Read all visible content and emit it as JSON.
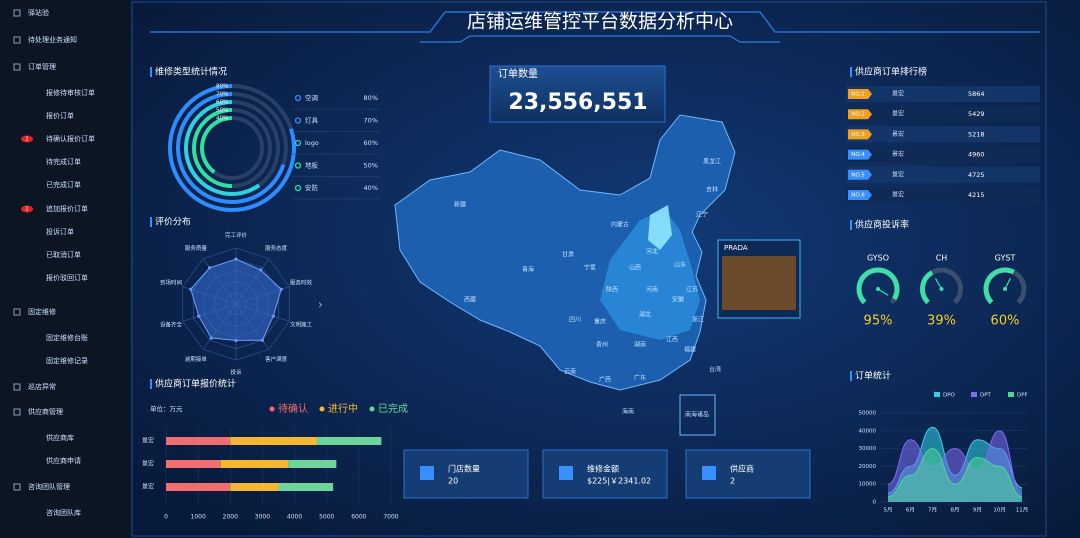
{
  "sidebar": {
    "items": [
      {
        "label": "驿站验"
      },
      {
        "label": "待处理业务通知"
      },
      {
        "label": "订单管理",
        "children": [
          {
            "label": "报修待审核订单"
          },
          {
            "label": "报价订单"
          },
          {
            "label": "待确认报价订单",
            "badge": 2
          },
          {
            "label": "待完成订单"
          },
          {
            "label": "已完成订单"
          },
          {
            "label": "追加报价订单",
            "badge": 2
          },
          {
            "label": "投诉订单"
          },
          {
            "label": "已取消订单"
          },
          {
            "label": "报价驳回订单"
          }
        ]
      },
      {
        "label": "固定维修",
        "children": [
          {
            "label": "固定维修台账"
          },
          {
            "label": "固定维修记录"
          }
        ]
      },
      {
        "label": "巡店异常"
      },
      {
        "label": "供应商管理",
        "children": [
          {
            "label": "供应商库"
          },
          {
            "label": "供应商申请"
          }
        ]
      },
      {
        "label": "咨询团队管理",
        "children": [
          {
            "label": "咨询团队库"
          }
        ]
      }
    ]
  },
  "header": {
    "title": "店铺运维管控平台数据分析中心"
  },
  "order_count": {
    "label": "订单数量",
    "value": "23,556,551"
  },
  "map": {
    "labels": [
      "新疆",
      "西藏",
      "青海",
      "甘肃",
      "内蒙古",
      "黑龙江",
      "吉林",
      "辽宁",
      "河北",
      "山西",
      "陕西",
      "宁夏",
      "四川",
      "重庆",
      "贵州",
      "云南",
      "广西",
      "广东",
      "湖南",
      "湖北",
      "河南",
      "山东",
      "江苏",
      "安徽",
      "浙江",
      "江西",
      "福建",
      "台湾",
      "海南",
      "南海诸岛"
    ],
    "popup": {
      "title": "PRADA"
    }
  },
  "stats": [
    {
      "label": "门店数量",
      "value": 20
    },
    {
      "label": "维修金额",
      "value": "$225|￥2341.02"
    },
    {
      "label": "供应商",
      "value": 2
    }
  ],
  "ranking": {
    "title": "供应商订单排行榜",
    "rows": [
      {
        "rank": "NO.1",
        "name": "景宏",
        "value": 5864
      },
      {
        "rank": "NO.2",
        "name": "景宏",
        "value": 5429
      },
      {
        "rank": "NO.3",
        "name": "景宏",
        "value": 5218
      },
      {
        "rank": "NO.4",
        "name": "景宏",
        "value": 4960
      },
      {
        "rank": "NO.5",
        "name": "景宏",
        "value": 4725
      },
      {
        "rank": "NO.6",
        "name": "景宏",
        "value": 4215
      }
    ]
  },
  "chart_data": [
    {
      "type": "radial-bar",
      "title": "维修类型统计情况",
      "categories": [
        "空调",
        "灯具",
        "logo",
        "地板",
        "安防"
      ],
      "values": [
        80,
        70,
        60,
        50,
        40
      ],
      "value_labels": [
        "80%",
        "70%",
        "60%",
        "50%",
        "40%"
      ],
      "colors": [
        "#2f8cff",
        "#2f8cff",
        "#2fd0e0",
        "#2fe0a0",
        "#2fe0a0"
      ],
      "xlim": [
        0,
        100
      ]
    },
    {
      "type": "radar",
      "title": "评价分布",
      "categories": [
        "完工评价",
        "服务态度",
        "服务时效",
        "文明施工",
        "客户满意",
        "投诉",
        "逾期接单",
        "设备齐全",
        "到场时间",
        "服务质量"
      ],
      "values": [
        80,
        75,
        85,
        70,
        80,
        65,
        75,
        70,
        85,
        80
      ],
      "ylim": [
        0,
        100
      ],
      "color": "#3b6fd8"
    },
    {
      "type": "stacked-bar",
      "title": "供应商订单报价统计",
      "unit": "单位：万元",
      "categories": [
        "景宏",
        "景宏",
        "景宏"
      ],
      "series": [
        {
          "name": "待确认",
          "color": "#f26d6d",
          "values": [
            2000,
            1700,
            2000
          ]
        },
        {
          "name": "进行中",
          "color": "#f5b731",
          "values": [
            2700,
            2100,
            1500
          ]
        },
        {
          "name": "已完成",
          "color": "#6dd49a",
          "values": [
            2000,
            1500,
            1700
          ]
        }
      ],
      "xlim": [
        0,
        7000
      ],
      "xticks": [
        0,
        1000,
        2000,
        3000,
        4000,
        5000,
        6000,
        7000
      ]
    },
    {
      "type": "gauge",
      "title": "供应商投诉率",
      "categories": [
        "GYSO",
        "CH",
        "GYST"
      ],
      "values": [
        95,
        39,
        60
      ],
      "value_labels": [
        "95%",
        "39%",
        "60%"
      ],
      "ylim": [
        0,
        100
      ],
      "color": "#3ee0a8"
    },
    {
      "type": "area",
      "title": "订单统计",
      "x": [
        "5月",
        "6月",
        "7月",
        "8月",
        "9月",
        "10月",
        "11月"
      ],
      "series": [
        {
          "name": "DPO",
          "color": "#35d0e6",
          "values": [
            5000,
            20000,
            42000,
            15000,
            35000,
            30000,
            8000
          ]
        },
        {
          "name": "DPT",
          "color": "#7b6cf0",
          "values": [
            10000,
            35000,
            20000,
            30000,
            18000,
            40000,
            5000
          ]
        },
        {
          "name": "DPF",
          "color": "#4bd69a",
          "values": [
            3000,
            15000,
            30000,
            10000,
            25000,
            20000,
            3000
          ]
        }
      ],
      "ylim": [
        0,
        50000
      ],
      "yticks": [
        0,
        10000,
        20000,
        30000,
        40000,
        50000
      ]
    }
  ]
}
